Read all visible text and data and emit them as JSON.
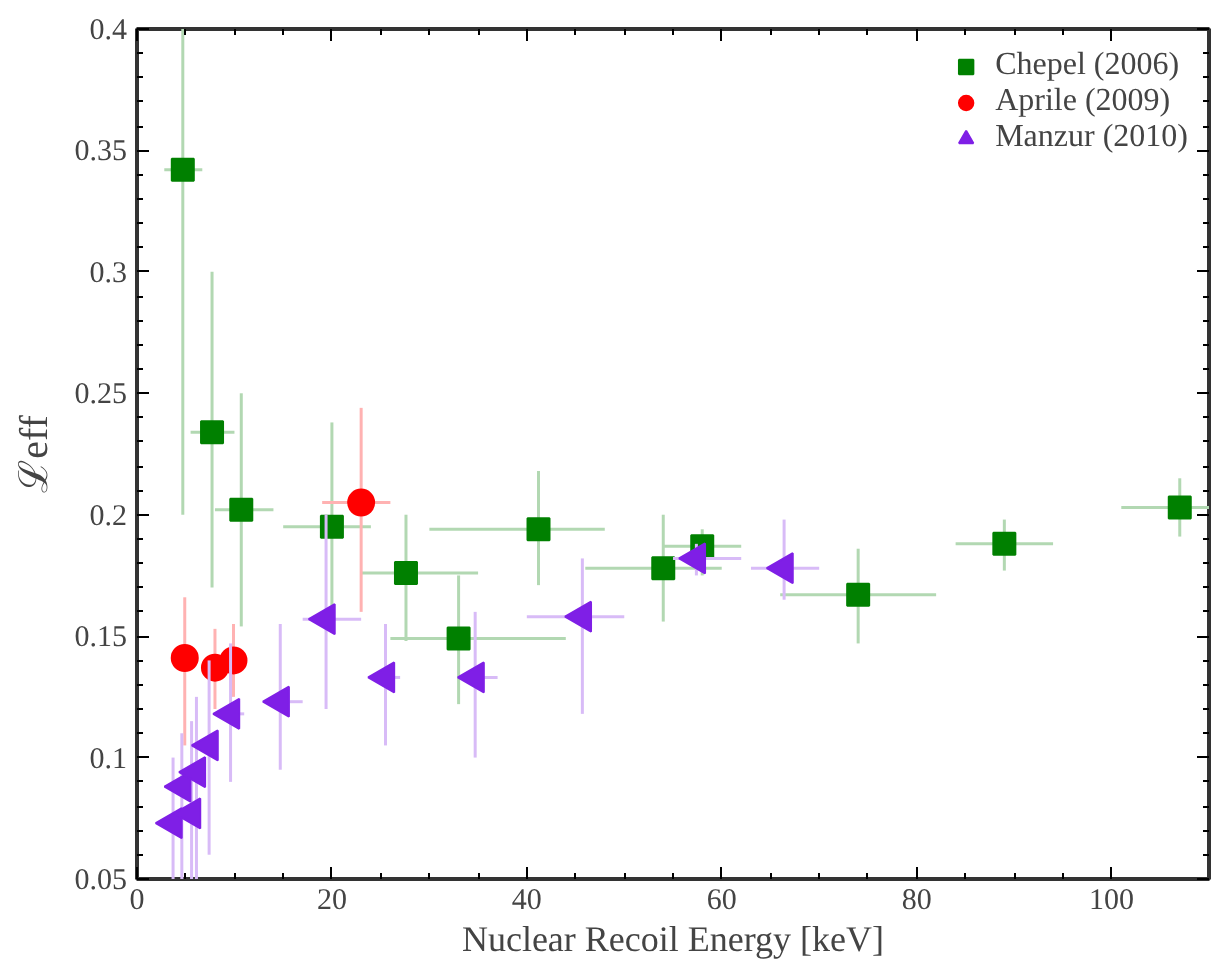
{
  "chart_data": {
    "type": "scatter",
    "xlabel": "Nuclear Recoil Energy [keV]",
    "ylabel": "ℒeff",
    "xlim": [
      0,
      110
    ],
    "ylim": [
      0.05,
      0.4
    ],
    "xticks": [
      0,
      20,
      40,
      60,
      80,
      100
    ],
    "yticks": [
      0.05,
      0.1,
      0.15,
      0.2,
      0.25,
      0.3,
      0.35,
      0.4
    ],
    "grid": false,
    "legend": "top right",
    "series": [
      {
        "name": "Chepel (2006)",
        "color": "#008000",
        "marker": "square",
        "x": [
          4.7,
          7.7,
          10.7,
          20,
          27.6,
          33,
          41.2,
          54,
          58,
          74,
          89,
          107
        ],
        "values": [
          0.342,
          0.234,
          0.202,
          0.195,
          0.176,
          0.149,
          0.194,
          0.178,
          0.187,
          0.167,
          0.188,
          0.203
        ],
        "errors": [
          [
            0.2,
            0.4
          ],
          [
            0.17,
            0.3
          ],
          [
            0.154,
            0.25
          ],
          [
            0.158,
            0.238
          ],
          [
            0.148,
            0.2
          ],
          [
            0.122,
            0.175
          ],
          [
            0.171,
            0.218
          ],
          [
            0.156,
            0.2
          ],
          [
            0.175,
            0.194
          ],
          [
            0.147,
            0.186
          ],
          [
            0.177,
            0.198
          ],
          [
            0.191,
            0.215
          ]
        ],
        "xerrors": [
          [
            2.8,
            6.7
          ],
          [
            5.5,
            10
          ],
          [
            8,
            14
          ],
          [
            15,
            24
          ],
          [
            23,
            35
          ],
          [
            26,
            44
          ],
          [
            30,
            48
          ],
          [
            46,
            60
          ],
          [
            54,
            62
          ],
          [
            66,
            82
          ],
          [
            84,
            94
          ],
          [
            101,
            110
          ]
        ]
      },
      {
        "name": "Aprile (2009)",
        "color": "#ff0000",
        "marker": "circle",
        "x": [
          4.9,
          8.0,
          9.9,
          23
        ],
        "values": [
          0.141,
          0.137,
          0.14,
          0.205
        ],
        "errors": [
          [
            0.105,
            0.166
          ],
          [
            0.12,
            0.153
          ],
          [
            0.125,
            0.155
          ],
          [
            0.16,
            0.244
          ]
        ],
        "xerrors": [
          null,
          null,
          null,
          [
            19,
            26
          ]
        ]
      },
      {
        "name": "Manzur (2010)",
        "color": "#7f1fe6",
        "marker": "triangle",
        "x": [
          3.7,
          4.6,
          5.6,
          6.1,
          7.4,
          9.6,
          14.7,
          19.4,
          25.5,
          34.7,
          45.7,
          57.4,
          66.4
        ],
        "values": [
          0.073,
          0.088,
          0.077,
          0.094,
          0.105,
          0.118,
          0.123,
          0.157,
          0.133,
          0.133,
          0.158,
          0.182,
          0.178
        ],
        "errors": [
          [
            0.05,
            0.1
          ],
          [
            0.05,
            0.11
          ],
          [
            0.05,
            0.115
          ],
          [
            0.05,
            0.125
          ],
          [
            0.06,
            0.14
          ],
          [
            0.09,
            0.147
          ],
          [
            0.095,
            0.155
          ],
          [
            0.12,
            0.2
          ],
          [
            0.105,
            0.155
          ],
          [
            0.1,
            0.16
          ],
          [
            0.118,
            0.182
          ],
          [
            0.175,
            0.188
          ],
          [
            0.165,
            0.198
          ]
        ],
        "xerrors": [
          null,
          null,
          null,
          null,
          null,
          [
            9,
            11
          ],
          [
            14,
            17
          ],
          [
            17,
            23
          ],
          [
            24,
            27
          ],
          [
            33,
            37
          ],
          [
            40,
            50
          ],
          [
            55,
            62
          ],
          [
            63,
            70
          ]
        ]
      }
    ]
  }
}
